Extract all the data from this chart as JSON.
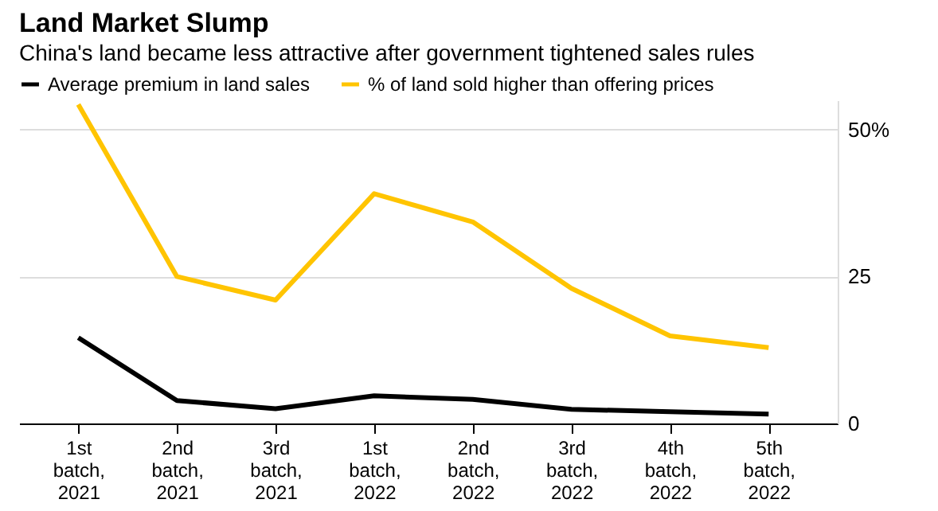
{
  "chart_data": {
    "type": "line",
    "title": "Land Market Slump",
    "subtitle": "China's land became less attractive after government tightened sales rules",
    "categories": [
      "1st batch, 2021",
      "2nd batch, 2021",
      "3rd batch, 2021",
      "1st batch, 2022",
      "2nd batch, 2022",
      "3rd batch, 2022",
      "4th batch, 2022",
      "5th batch, 2022"
    ],
    "series": [
      {
        "name": "Average premium in land sales",
        "color": "#000000",
        "values": [
          14.6,
          3.9,
          2.5,
          4.7,
          4.1,
          2.4,
          2.0,
          1.6
        ]
      },
      {
        "name": "% of land sold higher than offering prices",
        "color": "#ffc400",
        "values": [
          54.3,
          25,
          21,
          39.1,
          34.3,
          23,
          14.9,
          12.9
        ]
      }
    ],
    "ylim": [
      0,
      55
    ],
    "yticks": [
      0,
      25,
      {
        "value": 50,
        "label": "50%"
      }
    ],
    "grid": "y",
    "legend": "top left",
    "marker": "none",
    "line_style": "solid"
  }
}
